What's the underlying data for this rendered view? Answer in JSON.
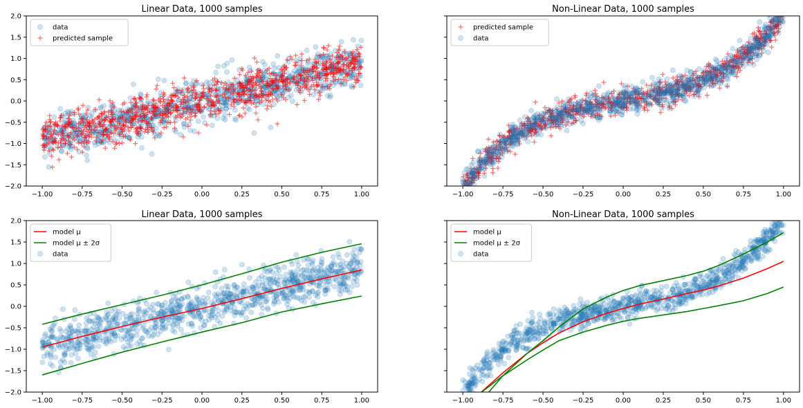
{
  "figure": {
    "panels": [
      {
        "title": "Linear Data, 1000 samples"
      },
      {
        "title": "Non-Linear Data, 1000 samples"
      },
      {
        "title": "Linear Data, 1000 samples"
      },
      {
        "title": "Non-Linear Data, 1000 samples"
      }
    ]
  },
  "chart_data": [
    {
      "type": "scatter",
      "title": "Linear Data, 1000 samples",
      "xlim": [
        -1.1,
        1.1
      ],
      "ylim": [
        -2.0,
        2.0
      ],
      "xticks": [
        "-1.00",
        "-0.75",
        "-0.50",
        "-0.25",
        "0.00",
        "0.25",
        "0.50",
        "0.75",
        "1.00"
      ],
      "yticks": [
        "-2.0",
        "-1.5",
        "-1.0",
        "-0.5",
        "0.0",
        "0.5",
        "1.0",
        "1.5",
        "2.0"
      ],
      "show_ytick_labels": true,
      "legend": {
        "placement": "upper-left",
        "entries": [
          "data",
          "predicted sample"
        ]
      },
      "series": [
        {
          "name": "data",
          "marker": "circle",
          "color": "#1f77b4",
          "alpha": 0.22,
          "n": 1000,
          "x_range": [
            -1.0,
            1.0
          ],
          "trend": "linear",
          "slope": 0.9,
          "intercept": 0.0,
          "noise_sd": 0.25
        },
        {
          "name": "predicted sample",
          "marker": "plus",
          "color": "#ff0000",
          "alpha": 0.55,
          "n": 1000,
          "x_range": [
            -1.0,
            1.0
          ],
          "trend": "linear",
          "slope": 0.9,
          "intercept": 0.0,
          "noise_sd": 0.25
        }
      ]
    },
    {
      "type": "scatter",
      "title": "Non-Linear Data, 1000 samples",
      "xlim": [
        -1.1,
        1.1
      ],
      "ylim": [
        -2.0,
        2.0
      ],
      "xticks": [
        "-1.00",
        "-0.75",
        "-0.50",
        "-0.25",
        "0.00",
        "0.25",
        "0.50",
        "0.75",
        "1.00"
      ],
      "yticks": [
        "-2.0",
        "-1.5",
        "-1.0",
        "-0.5",
        "0.0",
        "0.5",
        "1.0",
        "1.5",
        "2.0"
      ],
      "show_ytick_labels": false,
      "legend": {
        "placement": "upper-left",
        "entries": [
          "predicted sample",
          "data"
        ]
      },
      "series": [
        {
          "name": "predicted sample",
          "marker": "plus",
          "color": "#ff0000",
          "alpha": 0.55,
          "n": 1000,
          "x_range": [
            -1.0,
            1.0
          ],
          "trend": "cubic",
          "coef": [
            0.0,
            0.6,
            0.0,
            1.4
          ],
          "noise_sd": 0.15
        },
        {
          "name": "data",
          "marker": "circle",
          "color": "#1f77b4",
          "alpha": 0.22,
          "n": 1000,
          "x_range": [
            -1.0,
            1.0
          ],
          "trend": "cubic",
          "coef": [
            0.0,
            0.6,
            0.0,
            1.4
          ],
          "noise_sd": 0.15
        }
      ]
    },
    {
      "type": "line",
      "title": "Linear Data, 1000 samples",
      "xlim": [
        -1.1,
        1.1
      ],
      "ylim": [
        -2.0,
        2.0
      ],
      "xticks": [
        "-1.00",
        "-0.75",
        "-0.50",
        "-0.25",
        "0.00",
        "0.25",
        "0.50",
        "0.75",
        "1.00"
      ],
      "yticks": [
        "-2.0",
        "-1.5",
        "-1.0",
        "-0.5",
        "0.0",
        "0.5",
        "1.0",
        "1.5",
        "2.0"
      ],
      "show_ytick_labels": true,
      "legend": {
        "placement": "upper-left",
        "entries": [
          "model μ",
          "model μ ± 2σ",
          "data"
        ]
      },
      "series": [
        {
          "name": "model μ",
          "kind": "line",
          "color": "#ff0000",
          "x": [
            -1.0,
            -0.75,
            -0.5,
            -0.25,
            0.0,
            0.25,
            0.5,
            0.75,
            1.0
          ],
          "y": [
            -0.95,
            -0.7,
            -0.47,
            -0.25,
            -0.05,
            0.18,
            0.42,
            0.64,
            0.85
          ]
        },
        {
          "name": "model μ ± 2σ",
          "kind": "line",
          "color": "#008000",
          "x": [
            -1.0,
            -0.75,
            -0.5,
            -0.25,
            0.0,
            0.25,
            0.5,
            0.75,
            1.0
          ],
          "y": [
            -0.42,
            -0.18,
            0.04,
            0.26,
            0.5,
            0.76,
            1.03,
            1.26,
            1.46
          ]
        },
        {
          "name": "",
          "kind": "line",
          "color": "#008000",
          "x": [
            -1.0,
            -0.75,
            -0.5,
            -0.25,
            0.0,
            0.25,
            0.5,
            0.75,
            1.0
          ],
          "y": [
            -1.6,
            -1.33,
            -1.07,
            -0.83,
            -0.6,
            -0.38,
            -0.13,
            0.06,
            0.24
          ]
        },
        {
          "name": "data",
          "kind": "scatter",
          "marker": "circle",
          "color": "#1f77b4",
          "alpha": 0.22,
          "n": 1000,
          "x_range": [
            -1.0,
            1.0
          ],
          "trend": "linear",
          "slope": 0.9,
          "intercept": 0.0,
          "noise_sd": 0.25
        }
      ]
    },
    {
      "type": "line",
      "title": "Non-Linear Data, 1000 samples",
      "xlim": [
        -1.1,
        1.1
      ],
      "ylim": [
        -2.0,
        2.0
      ],
      "xticks": [
        "-1.00",
        "-0.75",
        "-0.50",
        "-0.25",
        "0.00",
        "0.25",
        "0.50",
        "0.75",
        "1.00"
      ],
      "yticks": [
        "-2.0",
        "-1.5",
        "-1.0",
        "-0.5",
        "0.0",
        "0.5",
        "1.0",
        "1.5",
        "2.0"
      ],
      "show_ytick_labels": false,
      "legend": {
        "placement": "upper-left",
        "entries": [
          "model μ",
          "model μ ± 2σ",
          "data"
        ]
      },
      "series": [
        {
          "name": "model μ",
          "kind": "line",
          "color": "#ff0000",
          "x": [
            -0.9,
            -0.75,
            -0.6,
            -0.5,
            -0.4,
            -0.25,
            -0.1,
            0.0,
            0.1,
            0.25,
            0.4,
            0.5,
            0.6,
            0.75,
            0.9,
            1.0
          ],
          "y": [
            -2.05,
            -1.55,
            -1.1,
            -0.85,
            -0.62,
            -0.36,
            -0.16,
            -0.05,
            0.05,
            0.17,
            0.3,
            0.38,
            0.48,
            0.66,
            0.88,
            1.05
          ]
        },
        {
          "name": "model μ ± 2σ",
          "kind": "line",
          "color": "#008000",
          "x": [
            -0.85,
            -0.75,
            -0.6,
            -0.5,
            -0.4,
            -0.25,
            -0.1,
            0.0,
            0.1,
            0.25,
            0.4,
            0.5,
            0.6,
            0.75,
            0.9,
            1.0
          ],
          "y": [
            -2.05,
            -1.62,
            -1.1,
            -0.8,
            -0.48,
            -0.06,
            0.22,
            0.37,
            0.48,
            0.6,
            0.72,
            0.82,
            0.96,
            1.22,
            1.5,
            1.72
          ]
        },
        {
          "name": "",
          "kind": "line",
          "color": "#008000",
          "x": [
            -0.9,
            -0.75,
            -0.6,
            -0.5,
            -0.4,
            -0.25,
            -0.1,
            0.0,
            0.1,
            0.25,
            0.4,
            0.5,
            0.6,
            0.75,
            0.9,
            1.0
          ],
          "y": [
            -2.05,
            -1.62,
            -1.25,
            -1.02,
            -0.8,
            -0.6,
            -0.44,
            -0.35,
            -0.28,
            -0.2,
            -0.12,
            -0.05,
            0.02,
            0.13,
            0.3,
            0.45
          ]
        },
        {
          "name": "data",
          "kind": "scatter",
          "marker": "circle",
          "color": "#1f77b4",
          "alpha": 0.22,
          "n": 1000,
          "x_range": [
            -1.0,
            1.0
          ],
          "trend": "cubic",
          "coef": [
            0.0,
            0.6,
            0.0,
            1.4
          ],
          "noise_sd": 0.15
        }
      ]
    }
  ]
}
